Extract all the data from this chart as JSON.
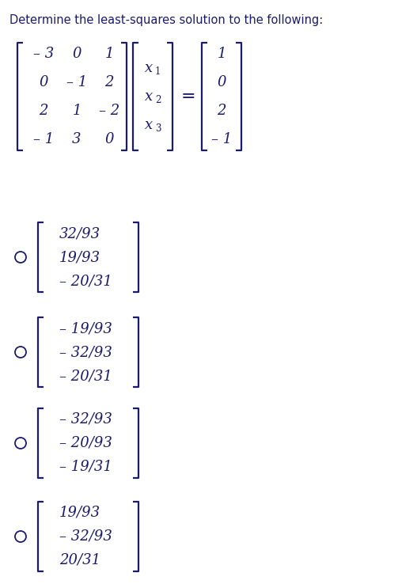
{
  "title": "Determine the least-squares solution to the following:",
  "title_fontsize": 10.5,
  "background_color": "#ffffff",
  "text_color": "#1a1a6e",
  "matrix_A": [
    [
      "– 3",
      "0",
      "1"
    ],
    [
      "0",
      "– 1",
      "2"
    ],
    [
      "2",
      "1",
      "– 2"
    ],
    [
      "– 1",
      "3",
      "0"
    ]
  ],
  "vector_x_labels": [
    [
      "x",
      "1"
    ],
    [
      "x",
      "2"
    ],
    [
      "x",
      "3"
    ]
  ],
  "vector_b": [
    "1",
    "0",
    "2",
    "– 1"
  ],
  "options": [
    [
      "32/93",
      "19/93",
      "– 20/31"
    ],
    [
      "– 19/93",
      "– 32/93",
      "– 20/31"
    ],
    [
      "– 32/93",
      "– 20/93",
      "– 19/31"
    ],
    [
      "19/93",
      "– 32/93",
      "20/31"
    ]
  ],
  "matrix_fontsize": 13,
  "option_fontsize": 13,
  "bracket_arm": 7,
  "bracket_lw": 1.6
}
